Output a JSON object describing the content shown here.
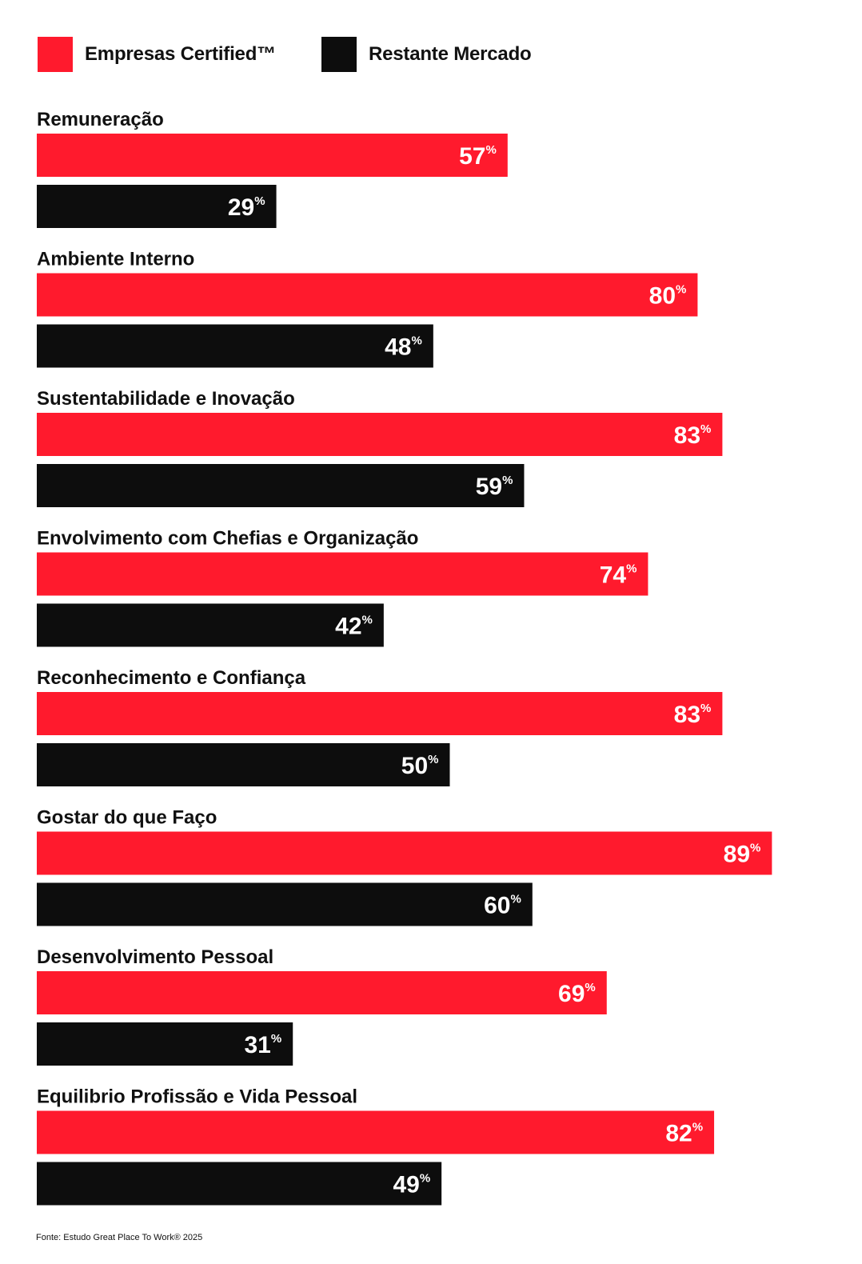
{
  "colors": {
    "certified": "#ff1a2d",
    "market": "#0d0d0d",
    "value_text": "#ffffff"
  },
  "legend": [
    {
      "label": "Empresas Certified™",
      "color": "#ff1a2d"
    },
    {
      "label": "Restante Mercado",
      "color": "#0d0d0d"
    }
  ],
  "chart_data": {
    "type": "bar",
    "orientation": "horizontal",
    "categories": [
      "Remuneração",
      "Ambiente Interno",
      "Sustentabilidade e Inovação",
      "Envolvimento com Chefias e Organização",
      "Reconhecimento e Confiança",
      "Gostar do que Faço",
      "Desenvolvimento Pessoal",
      "Equilibrio Profissão e Vida Pessoal"
    ],
    "series": [
      {
        "name": "Empresas Certified™",
        "color": "#ff1a2d",
        "values": [
          57,
          80,
          83,
          74,
          83,
          89,
          69,
          82
        ]
      },
      {
        "name": "Restante Mercado",
        "color": "#0d0d0d",
        "values": [
          29,
          48,
          59,
          42,
          50,
          60,
          31,
          49
        ]
      }
    ],
    "value_suffix": "%",
    "xlim": [
      0,
      100
    ],
    "grid": false,
    "legend_position": "top-left"
  },
  "source": "Fonte: Estudo Great Place To Work® 2025"
}
